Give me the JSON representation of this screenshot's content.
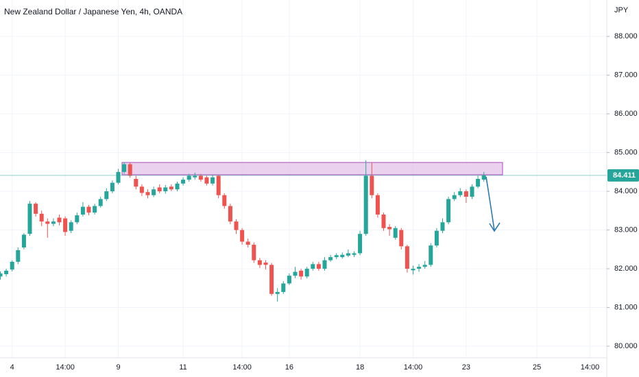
{
  "chart_data": {
    "type": "candlestick",
    "title": "New Zealand Dollar / Japanese Yen, 4h, OANDA",
    "y_axis_label": "JPY",
    "colors": {
      "up": "#26a69a",
      "down": "#ef5350"
    },
    "grid": true,
    "ylim": [
      79.7,
      88.94
    ],
    "yticks": [
      {
        "value": 80,
        "label": "80.000"
      },
      {
        "value": 81,
        "label": "81.000"
      },
      {
        "value": 82,
        "label": "82.000"
      },
      {
        "value": 83,
        "label": "83.000"
      },
      {
        "value": 84,
        "label": "84.000"
      },
      {
        "value": 85,
        "label": "85.000"
      },
      {
        "value": 86,
        "label": "86.000"
      },
      {
        "value": 87,
        "label": "87.000"
      },
      {
        "value": 88,
        "label": "88.000"
      }
    ],
    "categories": [
      null,
      null,
      "4",
      null,
      null,
      null,
      null,
      null,
      null,
      null,
      null,
      "14:00",
      null,
      null,
      null,
      null,
      null,
      null,
      null,
      null,
      "9",
      null,
      null,
      null,
      null,
      null,
      null,
      null,
      null,
      null,
      null,
      "11",
      null,
      null,
      null,
      null,
      null,
      null,
      null,
      null,
      null,
      "14:00",
      null,
      null,
      null,
      null,
      null,
      null,
      null,
      "16",
      null,
      null,
      null,
      null,
      null,
      null,
      null,
      null,
      null,
      null,
      null,
      "18",
      null,
      null,
      null,
      null,
      null,
      null,
      null,
      null,
      "14:00",
      null,
      null,
      null,
      null,
      null,
      null,
      null,
      null,
      "23",
      null,
      null,
      null,
      null,
      null,
      null,
      null,
      null,
      null,
      null,
      null,
      "25",
      null,
      null,
      null,
      null,
      null,
      null,
      null,
      null,
      "14:00",
      null,
      null
    ],
    "open": [
      81.8,
      81.86,
      81.98,
      82.18,
      82.55,
      82.9,
      83.68,
      83.42,
      83.22,
      83.16,
      83.32,
      83.3,
      82.98,
      83.2,
      83.4,
      83.6,
      83.45,
      83.62,
      83.8,
      84.0,
      84.22,
      84.5,
      84.7,
      84.32,
      84.12,
      83.98,
      83.9,
      84.1,
      84.0,
      84.12,
      84.05,
      84.2,
      84.3,
      84.36,
      84.4,
      84.36,
      84.2,
      84.4,
      83.9,
      83.62,
      83.22,
      83.0,
      82.7,
      82.62,
      82.22,
      82.16,
      82.1,
      81.35,
      81.4,
      81.62,
      81.82,
      81.95,
      81.8,
      82.0,
      82.12,
      82.0,
      82.22,
      82.3,
      82.3,
      82.34,
      82.36,
      82.4,
      82.9,
      84.4,
      83.9,
      83.4,
      83.08,
      82.8,
      83.0,
      82.58,
      81.96,
      82.0,
      82.05,
      82.1,
      82.6,
      82.98,
      83.2,
      83.8,
      83.9,
      84.0,
      83.86,
      84.12,
      84.3,
      null,
      null,
      null,
      null,
      null,
      null,
      null,
      null,
      null,
      null,
      null,
      null,
      null,
      null,
      null,
      null,
      null,
      null,
      null,
      null
    ],
    "high": [
      81.93,
      82.0,
      82.22,
      82.55,
      82.92,
      83.75,
      83.72,
      83.5,
      83.3,
      83.3,
      83.4,
      83.35,
      83.25,
      83.45,
      83.72,
      83.65,
      83.68,
      83.86,
      84.08,
      84.28,
      84.58,
      84.75,
      84.74,
      84.4,
      84.18,
      84.05,
      84.12,
      84.18,
      84.16,
      84.18,
      84.25,
      84.36,
      84.45,
      84.48,
      84.45,
      84.4,
      84.42,
      84.42,
      83.95,
      83.68,
      83.28,
      83.05,
      82.78,
      82.68,
      82.28,
      82.22,
      82.15,
      81.5,
      81.68,
      81.88,
      82.05,
      82.0,
      82.05,
      82.18,
      82.18,
      82.3,
      82.36,
      82.4,
      82.42,
      82.5,
      82.45,
      82.98,
      84.8,
      84.75,
      83.95,
      83.45,
      83.15,
      83.1,
      83.05,
      82.62,
      82.08,
      82.12,
      82.2,
      82.66,
      83.05,
      83.3,
      83.86,
      83.98,
      84.08,
      84.05,
      84.18,
      84.4,
      84.5,
      null,
      null,
      null,
      null,
      null,
      null,
      null,
      null,
      null,
      null,
      null,
      null,
      null,
      null,
      null,
      null,
      null,
      null,
      null,
      null
    ],
    "low": [
      81.72,
      81.8,
      81.93,
      82.12,
      82.5,
      82.85,
      83.35,
      83.1,
      82.8,
      83.1,
      83.12,
      82.85,
      82.92,
      83.15,
      83.35,
      83.38,
      83.4,
      83.58,
      83.75,
      83.95,
      84.18,
      84.45,
      84.35,
      84.05,
      83.88,
      83.82,
      83.85,
      83.95,
      83.94,
      84.0,
      84.0,
      84.15,
      84.25,
      84.3,
      84.25,
      84.15,
      84.15,
      83.82,
      83.55,
      83.15,
      82.9,
      82.62,
      82.55,
      82.15,
      82.02,
      81.98,
      81.3,
      81.15,
      81.35,
      81.58,
      81.76,
      81.72,
      81.75,
      81.95,
      81.95,
      81.95,
      82.18,
      82.25,
      82.26,
      82.3,
      82.3,
      82.35,
      82.85,
      83.82,
      83.32,
      82.98,
      82.85,
      82.75,
      82.5,
      81.9,
      81.85,
      81.92,
      82.0,
      82.05,
      82.55,
      82.92,
      83.15,
      83.75,
      83.85,
      83.7,
      83.8,
      84.08,
      84.25,
      null,
      null,
      null,
      null,
      null,
      null,
      null,
      null,
      null,
      null,
      null,
      null,
      null,
      null,
      null,
      null,
      null,
      null,
      null,
      null
    ],
    "close": [
      81.88,
      81.95,
      82.18,
      82.48,
      82.88,
      83.68,
      83.42,
      83.22,
      83.16,
      83.22,
      83.2,
      82.95,
      83.2,
      83.38,
      83.6,
      83.45,
      83.62,
      83.8,
      84.0,
      84.22,
      84.5,
      84.7,
      84.4,
      84.12,
      83.96,
      83.9,
      84.05,
      84.0,
      84.1,
      84.05,
      84.2,
      84.3,
      84.4,
      84.4,
      84.3,
      84.2,
      84.36,
      83.9,
      83.62,
      83.22,
      83.0,
      82.7,
      82.62,
      82.22,
      82.1,
      82.1,
      81.35,
      81.4,
      81.62,
      81.82,
      81.92,
      81.8,
      82.0,
      82.12,
      82.0,
      82.22,
      82.3,
      82.35,
      82.36,
      82.4,
      82.4,
      82.9,
      84.4,
      83.9,
      83.4,
      83.05,
      83.02,
      83.05,
      82.58,
      82.0,
      82.0,
      82.05,
      82.1,
      82.6,
      82.98,
      83.2,
      83.8,
      83.9,
      84.0,
      83.86,
      84.12,
      84.32,
      84.411,
      null,
      null,
      null,
      null,
      null,
      null,
      null,
      null,
      null,
      null,
      null,
      null,
      null,
      null,
      null,
      null,
      null,
      null,
      null,
      null
    ]
  }
}
